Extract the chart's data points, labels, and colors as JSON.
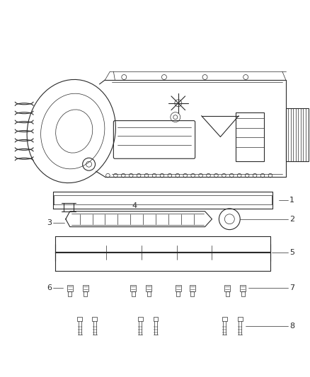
{
  "bg_color": "#ffffff",
  "line_color": "#2a2a2a",
  "fig_width": 4.38,
  "fig_height": 5.33,
  "dpi": 100
}
